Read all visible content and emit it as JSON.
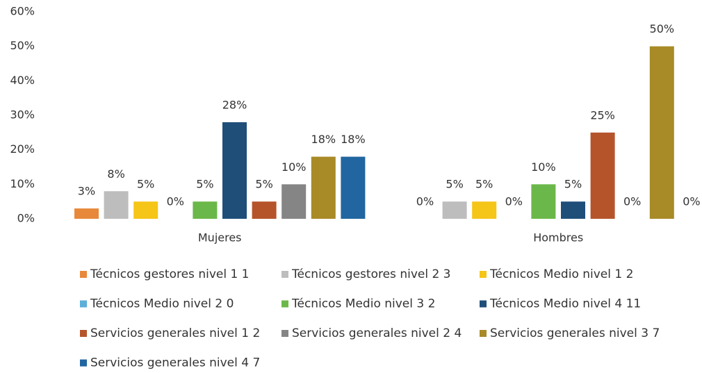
{
  "chart_data": {
    "type": "bar",
    "categories": [
      "Mujeres",
      "Hombres"
    ],
    "ylim": [
      0,
      60
    ],
    "yticks": [
      {
        "value": 0,
        "label": "0%"
      },
      {
        "value": 10,
        "label": "10%"
      },
      {
        "value": 20,
        "label": "20%"
      },
      {
        "value": 30,
        "label": "30%"
      },
      {
        "value": 40,
        "label": "40%"
      },
      {
        "value": 50,
        "label": "50%"
      },
      {
        "value": 60,
        "label": "60%"
      }
    ],
    "legend": "bottom",
    "series": [
      {
        "name": "Técnicos gestores nivel 1 1",
        "color": "#e8883a",
        "values": [
          3,
          0
        ],
        "value_labels": [
          "3%",
          "0%"
        ]
      },
      {
        "name": "Técnicos gestores nivel 2 3",
        "color": "#bdbdbd",
        "values": [
          8,
          5
        ],
        "value_labels": [
          "8%",
          "5%"
        ]
      },
      {
        "name": "Técnicos Medio nivel 1 2",
        "color": "#f5c518",
        "values": [
          5,
          5
        ],
        "value_labels": [
          "5%",
          "5%"
        ]
      },
      {
        "name": "Técnicos Medio nivel 2 0",
        "color": "#5bafd8",
        "values": [
          0,
          0
        ],
        "value_labels": [
          "0%",
          "0%"
        ]
      },
      {
        "name": "Técnicos Medio nivel 3 2",
        "color": "#6bb84a",
        "values": [
          5,
          10
        ],
        "value_labels": [
          "5%",
          "10%"
        ]
      },
      {
        "name": "Técnicos Medio nivel 4 11",
        "color": "#1f4e79",
        "values": [
          28,
          5
        ],
        "value_labels": [
          "28%",
          "5%"
        ]
      },
      {
        "name": "Servicios generales nivel 1 2",
        "color": "#b5542a",
        "values": [
          5,
          25
        ],
        "value_labels": [
          "5%",
          "25%"
        ]
      },
      {
        "name": "Servicios generales nivel 2 4",
        "color": "#858585",
        "values": [
          10,
          0
        ],
        "value_labels": [
          "10%",
          "0%"
        ]
      },
      {
        "name": "Servicios generales nivel 3 7",
        "color": "#a88a27",
        "values": [
          18,
          50
        ],
        "value_labels": [
          "18%",
          "50%"
        ]
      },
      {
        "name": "Servicios generales nivel 4 7",
        "color": "#2166a0",
        "values": [
          18,
          0
        ],
        "value_labels": [
          "18%",
          "0%"
        ]
      }
    ]
  }
}
